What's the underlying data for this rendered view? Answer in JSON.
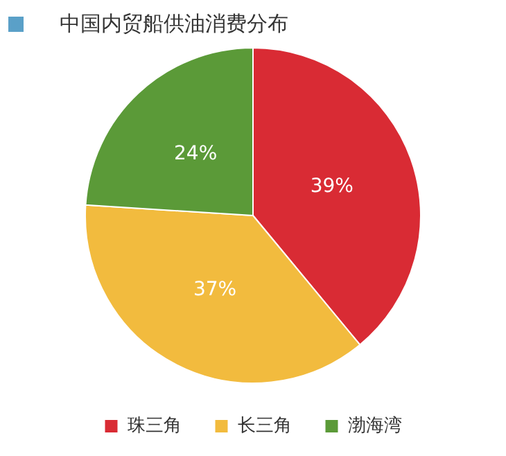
{
  "chart_data": {
    "type": "pie",
    "title": "中国内贸船供油消费分布",
    "categories": [
      "珠三角",
      "长三角",
      "渤海湾"
    ],
    "values": [
      39,
      37,
      24
    ],
    "colors": [
      "#d92b34",
      "#f2bb3e",
      "#5b9a38"
    ],
    "value_labels": [
      "39%",
      "37%",
      "24%"
    ],
    "legend": "bottom"
  }
}
